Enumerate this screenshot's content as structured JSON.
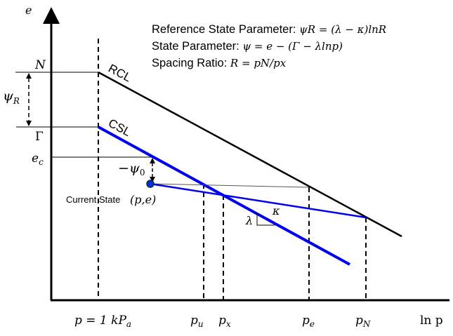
{
  "axes": {
    "y_label": "e",
    "x_label": "ln p"
  },
  "legend": [
    {
      "label": "Reference State Parameter:",
      "equation": "ψR = (λ − κ)lnR"
    },
    {
      "label": "State Parameter:",
      "equation": "ψ = e − (Γ − λlnp)"
    },
    {
      "label": "Spacing Ratio:",
      "equation": "R = pN/px"
    }
  ],
  "lines": {
    "rcl": "RCL",
    "csl": "CSL"
  },
  "y_markers": {
    "n": "N",
    "gamma": "Γ",
    "ec": "e",
    "ec_sub": "c",
    "psi_r": "ψ",
    "psi_r_sub": "R",
    "psi0": "−ψ",
    "psi0_sub": "0"
  },
  "current_state": {
    "label": "Current State",
    "coords": "(p,e)"
  },
  "slopes": {
    "lambda": "λ",
    "kappa": "κ"
  },
  "x_markers": {
    "p_ref": "p = 1 kP",
    "p_ref_sub": "a",
    "pu": "p",
    "pu_sub": "u",
    "px": "p",
    "px_sub": "x",
    "pe": "p",
    "pe_sub": "e",
    "pn": "p",
    "pn_sub": "N"
  },
  "colors": {
    "csl": "#0000ee",
    "rcl": "#000000",
    "point": "#0a2fd0"
  }
}
